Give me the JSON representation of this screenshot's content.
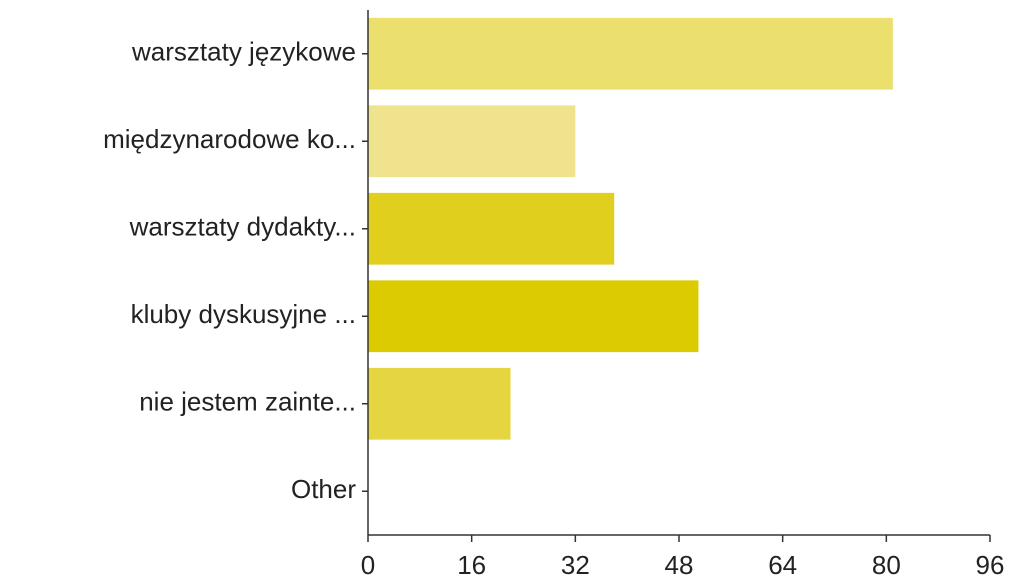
{
  "chart_data": {
    "type": "hbar",
    "categories": [
      "warsztaty językowe",
      "międzynarodowe ko...",
      "warsztaty dydakty...",
      "kluby dyskusyjne ...",
      "nie jestem zainte...",
      "Other"
    ],
    "values": [
      81,
      32,
      38,
      51,
      22,
      0
    ],
    "colors": [
      "#ebdf6e",
      "#efe48d",
      "#e1cf1e",
      "#dccb00",
      "#e5d540",
      "#e5d540"
    ],
    "xlim": [
      0,
      96
    ],
    "xticks": [
      0,
      16,
      32,
      48,
      64,
      80,
      96
    ],
    "grid": false
  }
}
